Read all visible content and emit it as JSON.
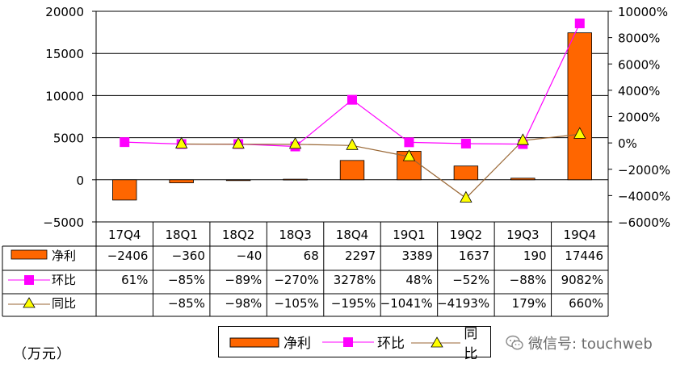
{
  "chart_data": {
    "type": "bar",
    "categories": [
      "17Q4",
      "18Q1",
      "18Q2",
      "18Q3",
      "18Q4",
      "19Q1",
      "19Q2",
      "19Q3",
      "19Q4"
    ],
    "series": [
      {
        "name": "净利",
        "type": "bar",
        "axis": "left",
        "color": "#ff6600",
        "values": [
          -2406,
          -360,
          -40,
          68,
          2297,
          3389,
          1637,
          190,
          17446
        ]
      },
      {
        "name": "环比",
        "type": "line",
        "axis": "right",
        "color": "#ff00ff",
        "marker": "square",
        "values": [
          61,
          -85,
          -89,
          -270,
          3278,
          48,
          -52,
          -88,
          9082
        ]
      },
      {
        "name": "同比",
        "type": "line",
        "axis": "right",
        "color": "#996633",
        "marker": "triangle",
        "values": [
          null,
          -85,
          -98,
          -105,
          -195,
          -1041,
          -4193,
          179,
          660
        ]
      }
    ],
    "y_left": {
      "min": -5000,
      "max": 20000,
      "ticks": [
        "-5000",
        "0",
        "5000",
        "10000",
        "15000",
        "20000"
      ]
    },
    "y_right": {
      "min": -6000,
      "max": 10000,
      "ticks": [
        "-6000%",
        "-4000%",
        "-2000%",
        "0%",
        "2000%",
        "4000%",
        "6000%",
        "8000%",
        "10000%"
      ]
    },
    "grid": "horizontal",
    "unit": "（万元）",
    "table": {
      "rows": [
        {
          "label": "净利",
          "cells": [
            "-2406",
            "-360",
            "-40",
            "68",
            "2297",
            "3389",
            "1637",
            "190",
            "17446"
          ]
        },
        {
          "label": "环比",
          "cells": [
            "61%",
            "-85%",
            "-89%",
            "-270%",
            "3278%",
            "48%",
            "-52%",
            "-88%",
            "9082%"
          ]
        },
        {
          "label": "同比",
          "cells": [
            "",
            "-85%",
            "-98%",
            "-105%",
            "-195%",
            "-1041%",
            "-4193%",
            "179%",
            "660%"
          ]
        }
      ]
    },
    "legend": [
      "净利",
      "环比",
      "同比"
    ],
    "legend_position": "bottom"
  },
  "watermark": {
    "text": "微信号: touchweb",
    "icon": "wechat-icon"
  }
}
